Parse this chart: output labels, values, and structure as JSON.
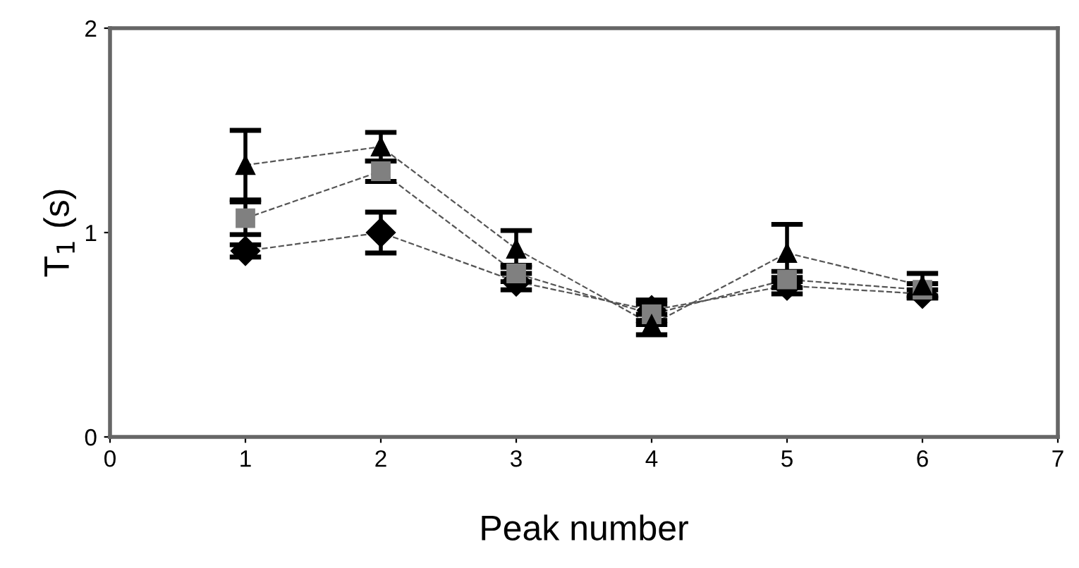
{
  "chart_data": {
    "type": "line",
    "xlabel": "Peak number",
    "ylabel": "T$_{1}$ (s)",
    "x": [
      1,
      2,
      3,
      4,
      5,
      6
    ],
    "series": [
      {
        "color": "#000000",
        "marker": "diamond",
        "values": [
          0.91,
          1.0,
          0.76,
          0.62,
          0.74,
          0.7
        ],
        "errors": [
          0.03,
          0.1,
          0.04,
          0.05,
          0.04,
          0.02
        ]
      },
      {
        "color": "#808080",
        "marker": "square",
        "values": [
          1.07,
          1.3,
          0.8,
          0.6,
          0.77,
          0.72
        ],
        "errors": [
          0.08,
          0.05,
          0.04,
          0.05,
          0.04,
          0.03
        ]
      },
      {
        "color": "#000000",
        "marker": "triangle",
        "values": [
          1.33,
          1.42,
          0.92,
          0.55,
          0.9,
          0.74
        ],
        "errors": [
          0.17,
          0.07,
          0.09,
          0.05,
          0.14,
          0.06
        ]
      }
    ],
    "line_style": "dashed",
    "xlim": [
      0,
      7
    ],
    "xticks": [
      0,
      1,
      2,
      3,
      4,
      5,
      6,
      7
    ],
    "ylim": [
      0,
      2
    ],
    "yticks": [
      0,
      1,
      2
    ],
    "grid": false,
    "legend": false
  }
}
